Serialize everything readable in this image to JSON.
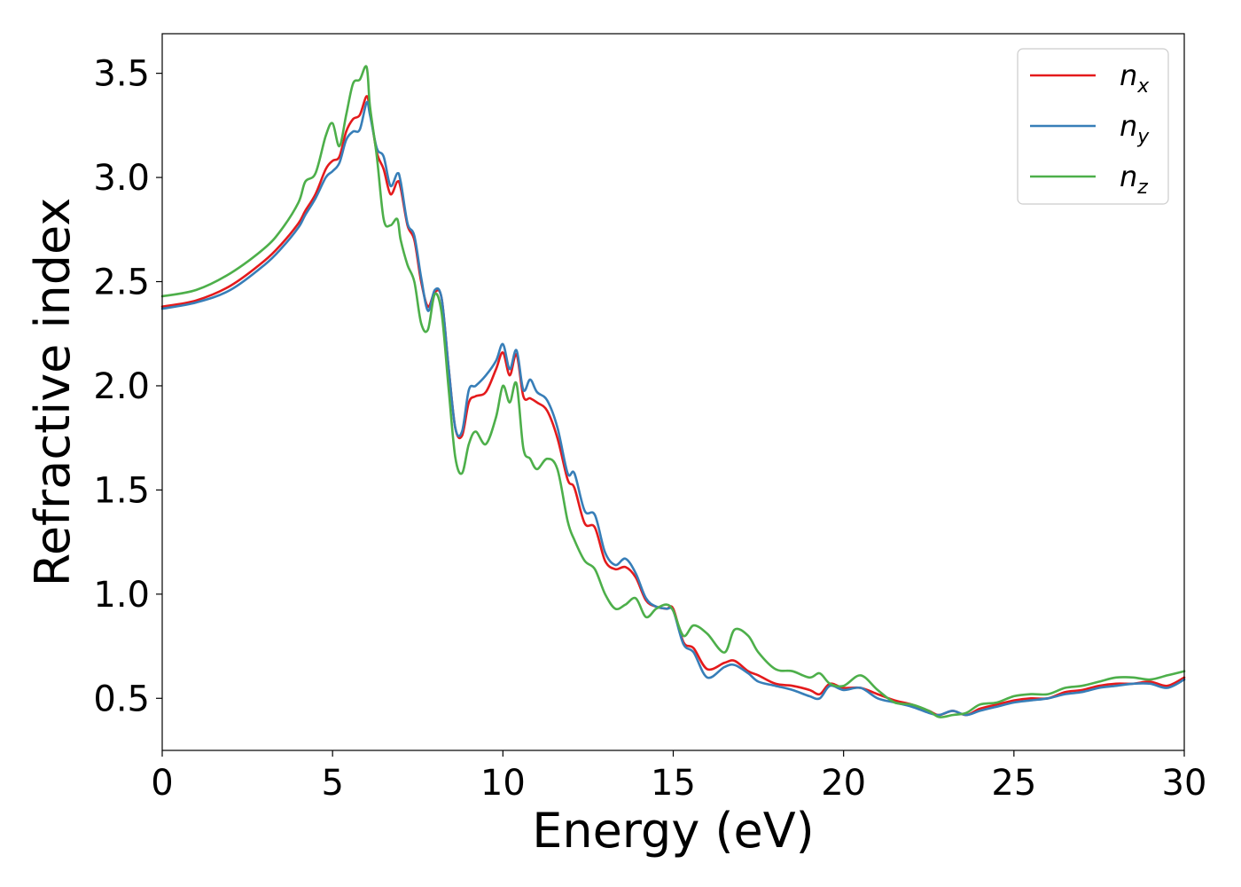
{
  "chart_data": {
    "type": "line",
    "xlabel": "Energy (eV)",
    "ylabel": "Refractive index",
    "xlim": [
      0,
      30
    ],
    "ylim": [
      0.25,
      3.69
    ],
    "xticks": [
      0,
      5,
      10,
      15,
      20,
      25,
      30
    ],
    "xtick_labels": [
      "0",
      "5",
      "10",
      "15",
      "20",
      "25",
      "30"
    ],
    "yticks": [
      0.5,
      1.0,
      1.5,
      2.0,
      2.5,
      3.0,
      3.5
    ],
    "ytick_labels": [
      "0.5",
      "1.0",
      "1.5",
      "2.0",
      "2.5",
      "3.0",
      "3.5"
    ],
    "grid": false,
    "legend_position": "top-right",
    "series": [
      {
        "name": "n_x",
        "label_base": "n",
        "label_sub": "x",
        "color": "#e41a1c",
        "x": [
          0,
          1,
          2,
          3,
          3.5,
          4,
          4.2,
          4.5,
          4.8,
          5,
          5.2,
          5.4,
          5.6,
          5.8,
          6,
          6.1,
          6.3,
          6.5,
          6.7,
          6.9,
          7,
          7.2,
          7.4,
          7.6,
          7.8,
          8,
          8.2,
          8.4,
          8.6,
          8.8,
          9,
          9.2,
          9.5,
          9.8,
          10,
          10.2,
          10.4,
          10.6,
          10.8,
          11,
          11.3,
          11.6,
          11.9,
          12.1,
          12.4,
          12.7,
          13,
          13.3,
          13.6,
          13.9,
          14.2,
          14.5,
          14.8,
          15,
          15.3,
          15.6,
          16,
          16.5,
          16.8,
          17.2,
          17.5,
          18,
          18.5,
          19,
          19.3,
          19.6,
          20,
          20.5,
          21,
          21.5,
          22,
          22.5,
          22.8,
          23.2,
          23.6,
          24,
          24.5,
          25,
          25.5,
          26,
          26.5,
          27,
          27.5,
          28,
          28.5,
          29,
          29.5,
          30
        ],
        "y": [
          2.38,
          2.41,
          2.48,
          2.6,
          2.68,
          2.78,
          2.84,
          2.92,
          3.04,
          3.08,
          3.1,
          3.22,
          3.28,
          3.3,
          3.39,
          3.32,
          3.12,
          3.04,
          2.92,
          2.98,
          2.95,
          2.77,
          2.7,
          2.5,
          2.38,
          2.45,
          2.42,
          2.1,
          1.8,
          1.76,
          1.92,
          1.95,
          1.97,
          2.08,
          2.16,
          2.05,
          2.15,
          1.95,
          1.94,
          1.92,
          1.88,
          1.75,
          1.55,
          1.51,
          1.34,
          1.32,
          1.16,
          1.12,
          1.13,
          1.08,
          0.97,
          0.94,
          0.93,
          0.93,
          0.77,
          0.74,
          0.64,
          0.67,
          0.68,
          0.63,
          0.61,
          0.57,
          0.56,
          0.54,
          0.52,
          0.57,
          0.55,
          0.55,
          0.52,
          0.49,
          0.47,
          0.44,
          0.42,
          0.44,
          0.42,
          0.45,
          0.47,
          0.49,
          0.5,
          0.5,
          0.53,
          0.54,
          0.56,
          0.57,
          0.57,
          0.58,
          0.56,
          0.6
        ]
      },
      {
        "name": "n_y",
        "label_base": "n",
        "label_sub": "y",
        "color": "#377eb8",
        "x": [
          0,
          1,
          2,
          3,
          3.5,
          4,
          4.2,
          4.5,
          4.8,
          5,
          5.2,
          5.4,
          5.6,
          5.8,
          6,
          6.1,
          6.3,
          6.5,
          6.7,
          6.9,
          7,
          7.2,
          7.4,
          7.6,
          7.8,
          8,
          8.2,
          8.4,
          8.6,
          8.8,
          9,
          9.2,
          9.5,
          9.8,
          10,
          10.2,
          10.4,
          10.6,
          10.8,
          11,
          11.3,
          11.6,
          11.9,
          12.1,
          12.4,
          12.7,
          13,
          13.3,
          13.6,
          13.9,
          14.2,
          14.5,
          14.8,
          15,
          15.3,
          15.6,
          16,
          16.5,
          16.8,
          17.2,
          17.5,
          18,
          18.5,
          19,
          19.3,
          19.6,
          20,
          20.5,
          21,
          21.5,
          22,
          22.5,
          22.8,
          23.2,
          23.6,
          24,
          24.5,
          25,
          25.5,
          26,
          26.5,
          27,
          27.5,
          28,
          28.5,
          29,
          29.5,
          30
        ],
        "y": [
          2.37,
          2.4,
          2.46,
          2.58,
          2.66,
          2.76,
          2.82,
          2.9,
          3.0,
          3.03,
          3.07,
          3.18,
          3.22,
          3.23,
          3.36,
          3.3,
          3.14,
          3.1,
          2.96,
          3.02,
          2.98,
          2.78,
          2.72,
          2.52,
          2.36,
          2.46,
          2.42,
          2.1,
          1.8,
          1.78,
          1.98,
          2.0,
          2.05,
          2.12,
          2.2,
          2.08,
          2.17,
          1.98,
          2.03,
          1.97,
          1.93,
          1.8,
          1.58,
          1.58,
          1.4,
          1.38,
          1.2,
          1.14,
          1.17,
          1.1,
          0.98,
          0.94,
          0.93,
          0.92,
          0.76,
          0.72,
          0.6,
          0.65,
          0.66,
          0.62,
          0.58,
          0.56,
          0.54,
          0.51,
          0.5,
          0.56,
          0.54,
          0.55,
          0.5,
          0.48,
          0.46,
          0.43,
          0.42,
          0.44,
          0.42,
          0.44,
          0.46,
          0.48,
          0.49,
          0.5,
          0.52,
          0.53,
          0.55,
          0.56,
          0.57,
          0.57,
          0.55,
          0.59
        ]
      },
      {
        "name": "n_z",
        "label_base": "n",
        "label_sub": "z",
        "color": "#4daf4a",
        "x": [
          0,
          1,
          2,
          3,
          3.5,
          4,
          4.2,
          4.5,
          4.8,
          5,
          5.2,
          5.4,
          5.6,
          5.8,
          6,
          6.1,
          6.3,
          6.5,
          6.7,
          6.9,
          7,
          7.2,
          7.4,
          7.6,
          7.8,
          8,
          8.2,
          8.4,
          8.6,
          8.8,
          9,
          9.2,
          9.5,
          9.8,
          10,
          10.2,
          10.4,
          10.6,
          10.8,
          11,
          11.3,
          11.6,
          11.9,
          12.1,
          12.4,
          12.7,
          13,
          13.3,
          13.6,
          13.9,
          14.2,
          14.5,
          14.8,
          15,
          15.3,
          15.6,
          16,
          16.5,
          16.8,
          17.2,
          17.5,
          18,
          18.5,
          19,
          19.3,
          19.6,
          20,
          20.5,
          21,
          21.5,
          22,
          22.5,
          22.8,
          23.2,
          23.6,
          24,
          24.5,
          25,
          25.5,
          26,
          26.5,
          27,
          27.5,
          28,
          28.5,
          29,
          29.5,
          30
        ],
        "y": [
          2.43,
          2.46,
          2.54,
          2.66,
          2.75,
          2.88,
          2.98,
          3.02,
          3.2,
          3.26,
          3.15,
          3.3,
          3.45,
          3.47,
          3.53,
          3.34,
          3.1,
          2.8,
          2.77,
          2.8,
          2.7,
          2.58,
          2.5,
          2.3,
          2.27,
          2.44,
          2.35,
          2.0,
          1.66,
          1.58,
          1.72,
          1.78,
          1.72,
          1.85,
          2.0,
          1.92,
          2.01,
          1.7,
          1.65,
          1.6,
          1.65,
          1.6,
          1.35,
          1.26,
          1.16,
          1.12,
          1.0,
          0.93,
          0.95,
          0.98,
          0.89,
          0.93,
          0.95,
          0.92,
          0.8,
          0.85,
          0.81,
          0.72,
          0.83,
          0.8,
          0.72,
          0.64,
          0.63,
          0.6,
          0.62,
          0.57,
          0.56,
          0.61,
          0.54,
          0.48,
          0.47,
          0.44,
          0.41,
          0.42,
          0.43,
          0.47,
          0.48,
          0.51,
          0.52,
          0.52,
          0.55,
          0.56,
          0.58,
          0.6,
          0.6,
          0.59,
          0.61,
          0.63
        ]
      }
    ]
  }
}
